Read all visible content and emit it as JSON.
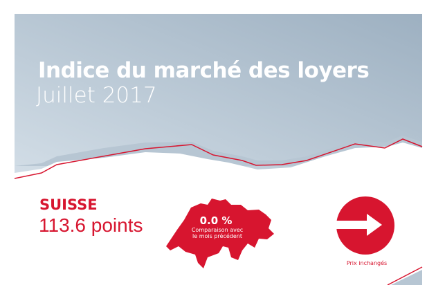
{
  "header": {
    "title": "Indice du marché des loyers",
    "period": "Juillet 2017"
  },
  "summary": {
    "region": "SUISSE",
    "index_value": "113.6 points",
    "change": "0.0 %",
    "change_caption_line1": "Comparaison avec",
    "change_caption_line2": "le mois précédent",
    "trend_icon": "arrow-right-icon",
    "trend_label": "Prix inchangés"
  },
  "colors": {
    "accent": "#d7152f",
    "sky_light": "#cdd9e3",
    "sky_dark": "#9fb2c3"
  }
}
